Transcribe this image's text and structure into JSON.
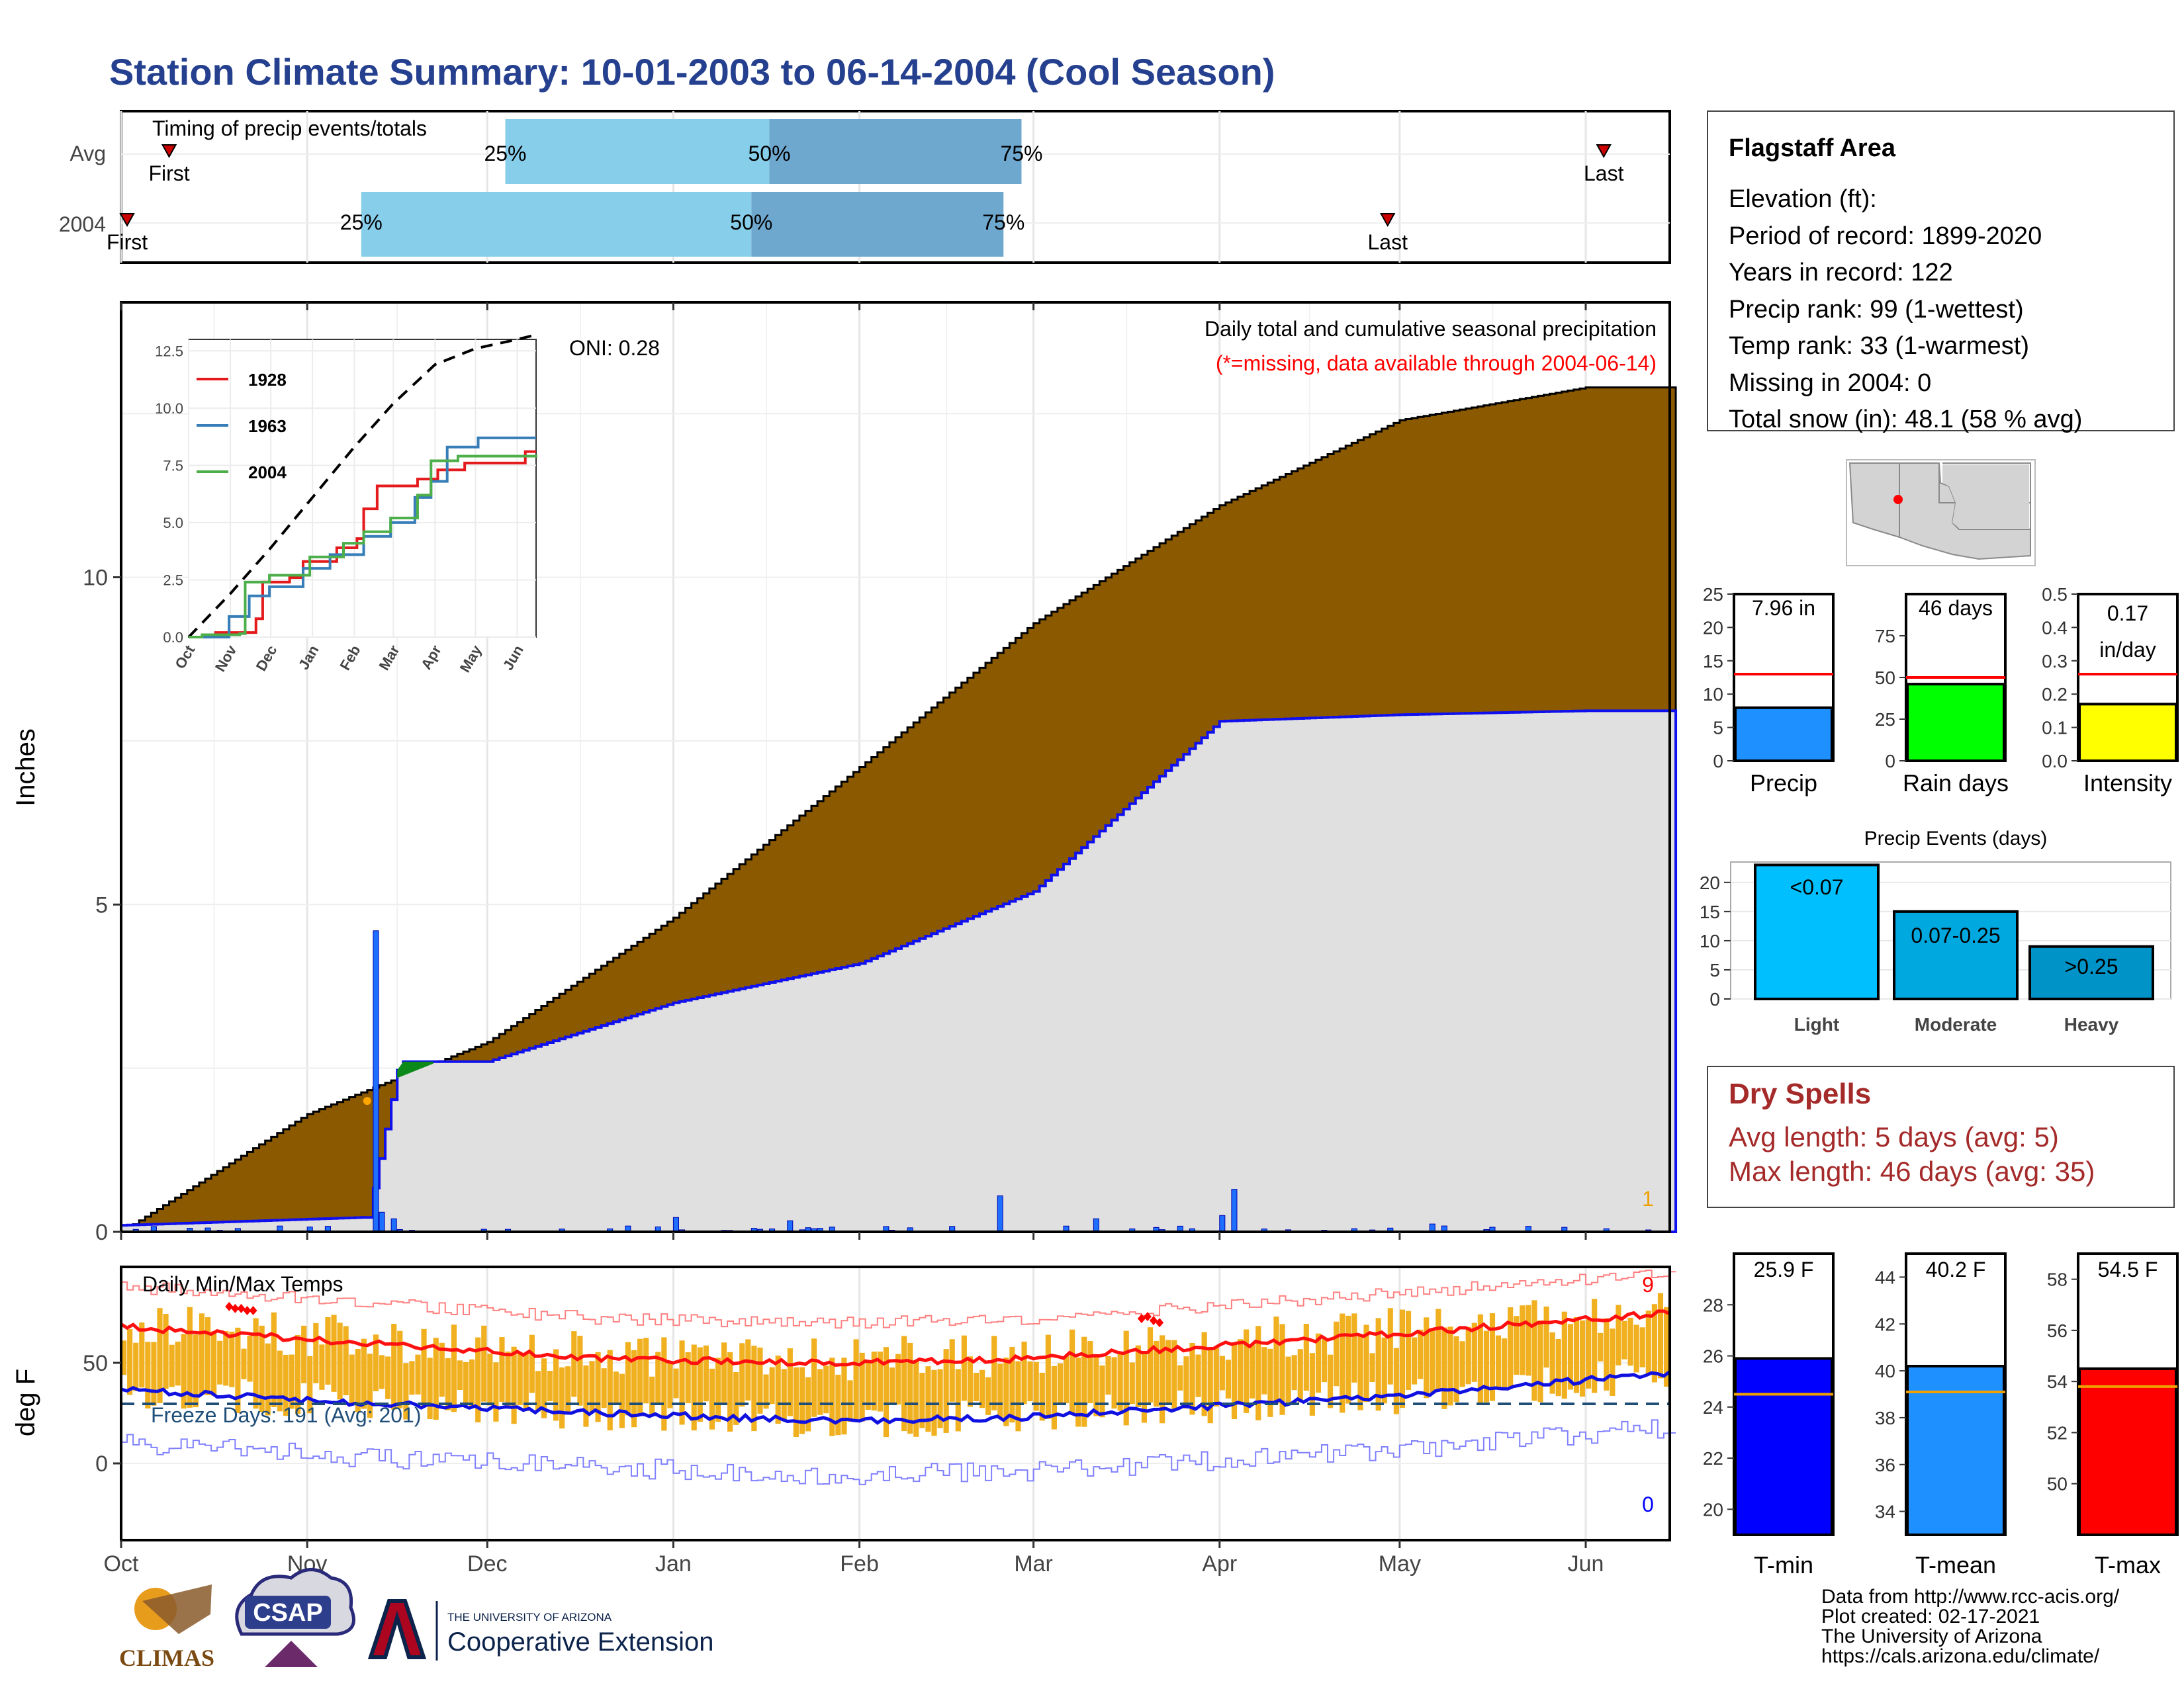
{
  "title": "Station Climate Summary: 10-01-2003 to 06-14-2004 (Cool Season)",
  "colors": {
    "title": "#25408f",
    "cumulative_fill": "#8B5A00",
    "normal_fill": "#e0e0e0",
    "bar_light_blue": "#87ceeb",
    "bar_dark_blue": "#6fa8cf",
    "daily_precip": "#1e6fff",
    "temp_bars": "#f0b020",
    "dry_spells": "#a52a2a",
    "surplus_green": "#0b8a1a"
  },
  "timing_panel": {
    "title": "Timing of precip events/totals",
    "rows": [
      {
        "label": "Avg",
        "first_label": "First",
        "last_label": "Last",
        "first_day": 8,
        "last_day": 247,
        "p25_day": 64,
        "p50_day": 108,
        "p75_day": 150,
        "p25_label": "25%",
        "p50_label": "50%",
        "p75_label": "75%"
      },
      {
        "label": "2004",
        "first_label": "First",
        "last_label": "Last",
        "first_day": 1,
        "last_day": 211,
        "p25_day": 40,
        "p50_day": 105,
        "p75_day": 147,
        "p25_label": "25%",
        "p50_label": "50%",
        "p75_label": "75%"
      }
    ]
  },
  "precip_panel": {
    "ylabel": "Inches",
    "legend_title": "Daily total and cumulative seasonal precipitation",
    "legend_note": "(*=missing, data available through 2004-06-14)",
    "oni_label": "ONI: 0.28",
    "corner_label": "1",
    "yticks": [
      "0",
      "5",
      "10"
    ],
    "xticks": [
      "Oct",
      "Nov",
      "Dec",
      "Jan",
      "Feb",
      "Mar",
      "Apr",
      "May",
      "Jun"
    ]
  },
  "inset_panel": {
    "yticks": [
      "0.0",
      "2.5",
      "5.0",
      "7.5",
      "10.0",
      "12.5"
    ],
    "xticks": [
      "Oct",
      "Nov",
      "Dec",
      "Jan",
      "Feb",
      "Mar",
      "Apr",
      "May",
      "Jun"
    ],
    "legend": [
      {
        "name": "1928",
        "color": "#e41a1c"
      },
      {
        "name": "1963",
        "color": "#377eb8"
      },
      {
        "name": "2004",
        "color": "#4daf4a"
      }
    ]
  },
  "temp_panel": {
    "ylabel": "deg F",
    "title": "Daily Min/Max Temps",
    "freeze_label": "Freeze Days: 191 (Avg: 201)",
    "top_right_label": "9",
    "bottom_right_label": "0",
    "yticks": [
      "0",
      "50"
    ]
  },
  "station_box": {
    "name": "Flagstaff Area",
    "lines": [
      "Elevation (ft):",
      "Period of record: 1899-2020",
      "Years in record: 122",
      "Precip rank: 99 (1-wettest)",
      "Temp rank: 33 (1-warmest)",
      "Missing in 2004: 0",
      "Total snow (in): 48.1 (58 % avg)"
    ]
  },
  "stat_bars": [
    {
      "label": "Precip",
      "value_label": "7.96 in",
      "value": 7.96,
      "avg": 13,
      "ymax": 25,
      "yticks": [
        "0",
        "5",
        "10",
        "15",
        "20",
        "25"
      ],
      "color": "#1e90ff"
    },
    {
      "label": "Rain days",
      "value_label": "46 days",
      "value": 46,
      "avg": 50,
      "ymax": 100,
      "yticks": [
        "0",
        "25",
        "50",
        "75"
      ],
      "color": "#00ff00"
    },
    {
      "label": "Intensity",
      "value_label": "0.17",
      "value_label2": "in/day",
      "value": 0.17,
      "avg": 0.26,
      "ymax": 0.5,
      "yticks": [
        "0.0",
        "0.1",
        "0.2",
        "0.3",
        "0.4",
        "0.5"
      ],
      "color": "#ffff00"
    }
  ],
  "precip_events": {
    "title": "Precip Events (days)",
    "categories": [
      "Light",
      "Moderate",
      "Heavy"
    ],
    "bar_labels": [
      "<0.07",
      "0.07-0.25",
      ">0.25"
    ],
    "values": [
      23,
      15,
      9
    ],
    "yticks": [
      "0",
      "5",
      "10",
      "15",
      "20"
    ],
    "colors": [
      "#00bfff",
      "#00a8e0",
      "#0093c8"
    ]
  },
  "dry_spells": {
    "title": "Dry Spells",
    "line1": "Avg length: 5 days (avg: 5)",
    "line2": "Max length: 46 days (avg: 35)"
  },
  "temp_bars": [
    {
      "label": "T-min",
      "value_label": "25.9 F",
      "value": 25.9,
      "avg": 24.5,
      "ymin": 19,
      "ymax": 30,
      "yticks": [
        "20",
        "22",
        "24",
        "26",
        "28"
      ],
      "color": "#0000ff"
    },
    {
      "label": "T-mean",
      "value_label": "40.2 F",
      "value": 40.2,
      "avg": 39.1,
      "ymin": 33,
      "ymax": 45,
      "yticks": [
        "34",
        "36",
        "38",
        "40",
        "42",
        "44"
      ],
      "color": "#1e90ff"
    },
    {
      "label": "T-max",
      "value_label": "54.5 F",
      "value": 54.5,
      "avg": 53.8,
      "ymin": 48,
      "ymax": 59,
      "yticks": [
        "50",
        "52",
        "54",
        "56",
        "58"
      ],
      "color": "#ff0000"
    }
  ],
  "footer": {
    "lines": [
      "Data from http://www.rcc-acis.org/",
      "Plot created: 02-17-2021",
      "The University of Arizona",
      "https://cals.arizona.edu/climate/"
    ]
  },
  "logos": {
    "climas": "CLIMAS",
    "csap": "CSAP",
    "ua_small": "THE UNIVERSITY OF ARIZONA",
    "ua_big": "Cooperative Extension"
  },
  "chart_data": {
    "type": "area",
    "title": "Daily total and cumulative seasonal precipitation",
    "ylabel": "Inches",
    "x": [
      "Oct",
      "Nov",
      "Dec",
      "Jan",
      "Feb",
      "Mar",
      "Apr",
      "May",
      "Jun"
    ],
    "ylim": [
      0,
      14.2
    ],
    "series": [
      {
        "values": [
          0.0,
          1.8,
          2.9,
          4.8,
          7.1,
          9.3,
          11.1,
          12.4,
          12.9
        ]
      },
      {
        "values": [
          0.1,
          0.2,
          2.6,
          3.5,
          4.1,
          5.2,
          7.8,
          7.9,
          7.96
        ]
      }
    ]
  }
}
